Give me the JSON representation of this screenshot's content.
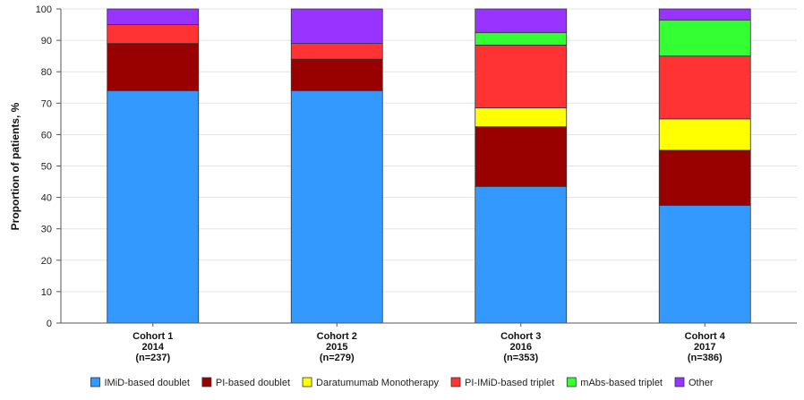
{
  "chart_data": {
    "type": "bar",
    "stacked": true,
    "ylabel": "Proportion of patients, %",
    "xlabel": "",
    "ylim": [
      0,
      100
    ],
    "yticks": [
      0,
      10,
      20,
      30,
      40,
      50,
      60,
      70,
      80,
      90,
      100
    ],
    "grid": "horizontal",
    "legend_position": "bottom",
    "categories": [
      [
        "Cohort 1",
        "2014",
        "(n=237)"
      ],
      [
        "Cohort 2",
        "2015",
        "(n=279)"
      ],
      [
        "Cohort 3",
        "2016",
        "(n=353)"
      ],
      [
        "Cohort 4",
        "2017",
        "(n=386)"
      ]
    ],
    "series": [
      {
        "name": "IMiD-based doublet",
        "color": "#3399ff",
        "values": [
          74,
          74,
          43.5,
          37.5
        ]
      },
      {
        "name": "PI-based doublet",
        "color": "#990000",
        "values": [
          15,
          10,
          19,
          17.5
        ]
      },
      {
        "name": "Daratumumab Monotherapy",
        "color": "#ffff00",
        "values": [
          0,
          0,
          6,
          10
        ]
      },
      {
        "name": "PI-IMiD-based triplet",
        "color": "#ff3333",
        "values": [
          6,
          5,
          20,
          20
        ]
      },
      {
        "name": "mAbs-based triplet",
        "color": "#33ff33",
        "values": [
          0,
          0,
          4,
          11.5
        ]
      },
      {
        "name": "Other",
        "color": "#9933ff",
        "values": [
          5,
          11,
          7.5,
          3.5
        ]
      }
    ]
  }
}
